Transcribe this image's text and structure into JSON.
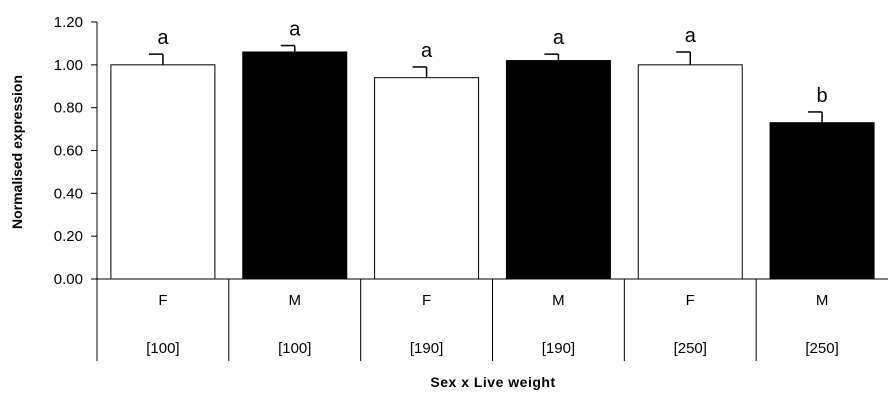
{
  "chart_data": {
    "type": "bar",
    "ylabel": "Normalised expression",
    "xlabel": "Sex x Live weight",
    "ylim": [
      0,
      1.2
    ],
    "yticks": [
      "0.00",
      "0.20",
      "0.40",
      "0.60",
      "0.80",
      "1.00",
      "1.20"
    ],
    "tick_values": [
      0,
      0.2,
      0.4,
      0.6,
      0.8,
      1.0,
      1.2
    ],
    "grid": false,
    "categories": [
      {
        "sex": "F",
        "weight": "[100]",
        "value": 1.0,
        "error": 0.05,
        "letter": "a",
        "fill": "#ffffff"
      },
      {
        "sex": "M",
        "weight": "[100]",
        "value": 1.06,
        "error": 0.03,
        "letter": "a",
        "fill": "#000000"
      },
      {
        "sex": "F",
        "weight": "[190]",
        "value": 0.94,
        "error": 0.05,
        "letter": "a",
        "fill": "#ffffff"
      },
      {
        "sex": "M",
        "weight": "[190]",
        "value": 1.02,
        "error": 0.03,
        "letter": "a",
        "fill": "#000000"
      },
      {
        "sex": "F",
        "weight": "[250]",
        "value": 1.0,
        "error": 0.06,
        "letter": "a",
        "fill": "#ffffff"
      },
      {
        "sex": "M",
        "weight": "[250]",
        "value": 0.73,
        "error": 0.05,
        "letter": "b",
        "fill": "#000000"
      }
    ]
  }
}
